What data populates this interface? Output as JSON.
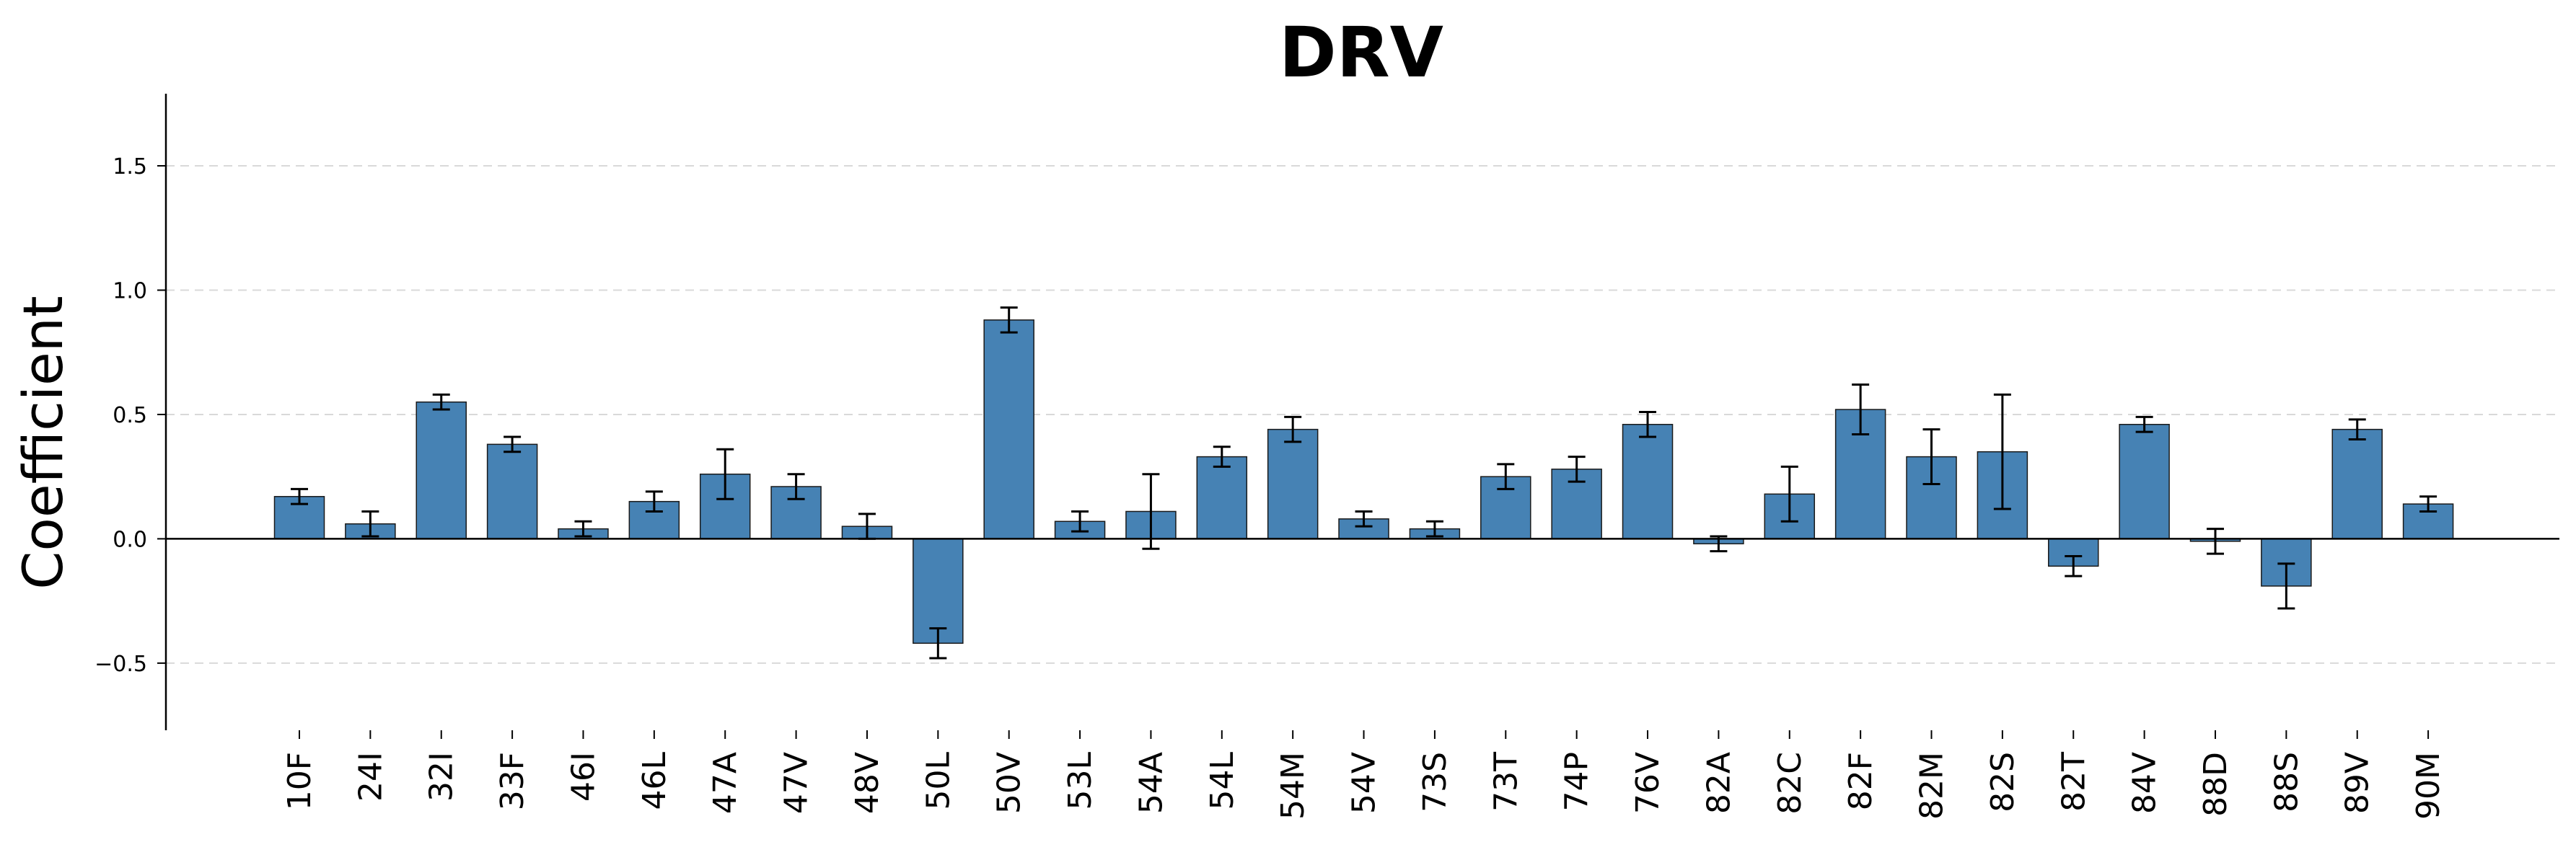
{
  "chart_data": {
    "type": "bar",
    "title": "DRV",
    "xlabel": "",
    "ylabel": "Coefficient",
    "ylim": [
      -0.77,
      1.79
    ],
    "yticks": [
      -0.5,
      0.0,
      0.5,
      1.0,
      1.5
    ],
    "ytick_labels": [
      "−0.5",
      "0.0",
      "0.5",
      "1.0",
      "1.5"
    ],
    "grid": "horizontal dashed",
    "bar_color": "#4682B4",
    "categories": [
      "10F",
      "24I",
      "32I",
      "33F",
      "46I",
      "46L",
      "47A",
      "47V",
      "48V",
      "50L",
      "50V",
      "53L",
      "54A",
      "54L",
      "54M",
      "54V",
      "73S",
      "73T",
      "74P",
      "76V",
      "82A",
      "82C",
      "82F",
      "82M",
      "82S",
      "82T",
      "84V",
      "88D",
      "88S",
      "89V",
      "90M"
    ],
    "values": [
      0.17,
      0.06,
      0.55,
      0.38,
      0.04,
      0.15,
      0.26,
      0.21,
      0.05,
      -0.42,
      0.88,
      0.07,
      0.11,
      0.33,
      0.44,
      0.08,
      0.04,
      0.25,
      0.28,
      0.46,
      -0.02,
      0.18,
      0.52,
      0.33,
      0.35,
      -0.11,
      0.46,
      -0.01,
      -0.19,
      0.44,
      0.14
    ],
    "errors": [
      0.03,
      0.05,
      0.03,
      0.03,
      0.03,
      0.04,
      0.1,
      0.05,
      0.05,
      0.06,
      0.05,
      0.04,
      0.15,
      0.04,
      0.05,
      0.03,
      0.03,
      0.05,
      0.05,
      0.05,
      0.03,
      0.11,
      0.1,
      0.11,
      0.23,
      0.04,
      0.03,
      0.05,
      0.09,
      0.04,
      0.03
    ]
  }
}
